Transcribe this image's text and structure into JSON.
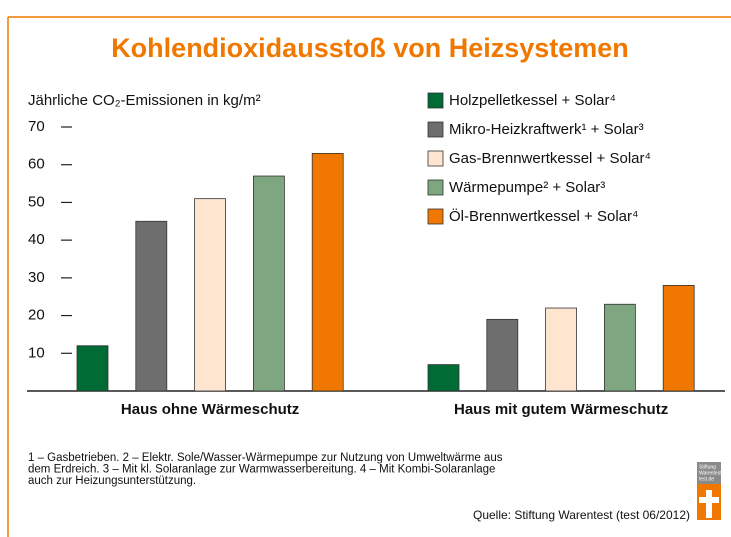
{
  "chart_data": {
    "type": "bar",
    "title": "Kohlendioxidausstoß von Heizsystemen",
    "y_label": "Jährliche CO₂-Emissionen in kg/m²",
    "categories": [
      "Haus ohne Wärmeschutz",
      "Haus mit gutem Wärmeschutz"
    ],
    "series": [
      {
        "name": "Holzpelletkessel + Solar⁴",
        "color": "#006b35",
        "values": [
          12,
          7
        ]
      },
      {
        "name": "Mikro-Heizkraftwerk¹ + Solar³",
        "color": "#6e6e6e",
        "values": [
          45,
          19
        ]
      },
      {
        "name": "Gas-Brennwertkessel + Solar⁴",
        "color": "#fde5cf",
        "values": [
          51,
          22
        ]
      },
      {
        "name": "Wärmepumpe² + Solar³",
        "color": "#7ea781",
        "values": [
          57,
          23
        ]
      },
      {
        "name": "Öl-Brennwertkessel + Solar⁴",
        "color": "#f07800",
        "values": [
          63,
          28
        ]
      }
    ],
    "ylim": [
      0,
      70
    ],
    "yticks": [
      10,
      20,
      30,
      40,
      50,
      60,
      70
    ],
    "notes": [
      "1 – Gasbetrieben. 2 – Elektr. Sole/Wasser-Wärmepumpe zur Nutzung von Umweltwärme aus",
      "dem Erdreich. 3 – Mit kl. Solaranlage zur Warmwasserbereitung. 4 – Mit Kombi-Solaranlage",
      "auch zur Heizungsunterstützung."
    ],
    "source": "Quelle: Stiftung Warentest (test 06/2012)",
    "logo": [
      "Stiftung",
      "Warentest",
      "test.de"
    ]
  }
}
